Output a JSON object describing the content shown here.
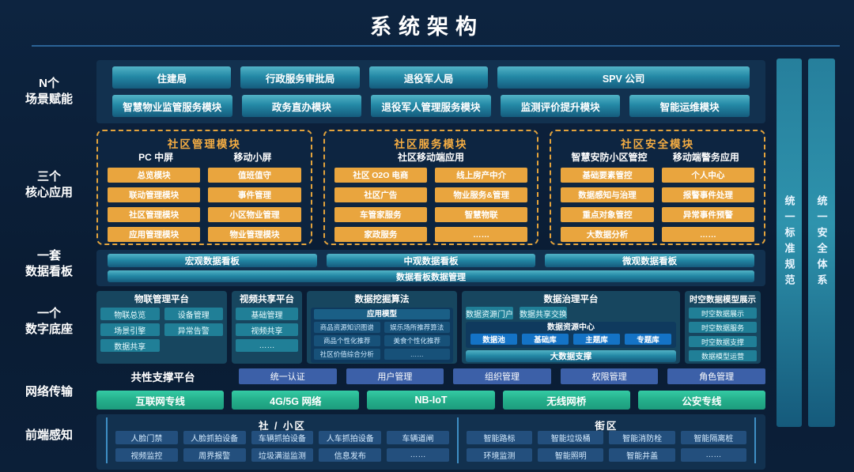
{
  "title": "系统架构",
  "sidebar": [
    [
      "N个",
      "场景赋能"
    ],
    [
      "三个",
      "核心应用"
    ],
    [
      "一套",
      "数据看板"
    ],
    [
      "一个",
      "数字底座"
    ],
    [
      "网络传输"
    ],
    [
      "前端感知"
    ]
  ],
  "right_bars": [
    "统一标准规范",
    "统一安全体系"
  ],
  "scenario": {
    "row1": [
      "住建局",
      "行政服务审批局",
      "退役军人局",
      "SPV  公司"
    ],
    "row2": [
      "智慧物业监管服务模块",
      "政务直办模块",
      "退役军人管理服务模块",
      "监测评价提升模块",
      "智能运维模块"
    ]
  },
  "core_apps": [
    {
      "title": "社区管理模块",
      "columns": [
        "PC 中屏",
        "移动小屏"
      ],
      "items": [
        "总览模块",
        "值班值守",
        "联动管理模块",
        "事件管理",
        "社区管理模块",
        "小区物业管理",
        "应用管理模块",
        "物业管理模块"
      ]
    },
    {
      "title": "社区服务模块",
      "columns": [
        "社区移动端应用"
      ],
      "items": [
        "社区  O2O  电商",
        "线上房产中介",
        "社区广告",
        "物业服务&管理",
        "车管家服务",
        "智慧物联",
        "家政服务",
        "……"
      ]
    },
    {
      "title": "社区安全模块",
      "columns": [
        "智慧安防小区管控",
        "移动端警务应用"
      ],
      "items": [
        "基础要素管控",
        "个人中心",
        "数据感知与治理",
        "报警事件处理",
        "重点对象管控",
        "异常事件预警",
        "大数据分析",
        "……"
      ]
    }
  ],
  "dashboard": {
    "boards": [
      "宏观数据看板",
      "中观数据看板",
      "微观数据看板"
    ],
    "manage": "数据看板数据管理"
  },
  "digital_base": {
    "iot": {
      "title": "物联管理平台",
      "items": [
        "物联总览",
        "设备管理",
        "场景引擎",
        "异常告警",
        "数据共享"
      ]
    },
    "video": {
      "title": "视频共享平台",
      "items": [
        "基础管理",
        "视频共享",
        "……"
      ]
    },
    "mining": {
      "title": "数据挖掘算法",
      "model_header": "应用模型",
      "items": [
        "商品资源知识图谱",
        "娱乐场所推荐算法",
        "商品个性化推荐",
        "美食个性化推荐",
        "社区价值综合分析",
        "……"
      ]
    },
    "governance": {
      "title": "数据治理平台",
      "top": [
        "数据资源门户",
        "数据共享交换"
      ],
      "center_label": "数据资源中心",
      "stores": [
        "数据池",
        "基础库",
        "主题库",
        "专题库"
      ],
      "support": "大数据支撑"
    },
    "spatiotemporal": {
      "title": "时空数据模型展示",
      "items": [
        "时空数据展示",
        "时空数据服务",
        "时空数据支撑",
        "数据模型运营"
      ]
    }
  },
  "common_platform": {
    "label": "共性支撑平台",
    "items": [
      "统一认证",
      "用户管理",
      "组织管理",
      "权限管理",
      "角色管理"
    ]
  },
  "network": [
    "互联网专线",
    "4G/5G  网络",
    "NB-IoT",
    "无线网桥",
    "公安专线"
  ],
  "perception": {
    "community": {
      "title": "社 / 小区",
      "items": [
        "人脸门禁",
        "人脸抓拍设备",
        "车辆抓拍设备",
        "人车抓拍设备",
        "车辆道闸",
        "视频监控",
        "周界报警",
        "垃圾满溢监测",
        "信息发布",
        "……"
      ]
    },
    "street": {
      "title": "街区",
      "items": [
        "智能路标",
        "智能垃圾桶",
        "智能消防栓",
        "智能隔离桩",
        "环境监测",
        "智能照明",
        "智能井盖",
        "……"
      ]
    }
  },
  "colors": {
    "background": "#0a1d35",
    "panel": "#12314f",
    "teal_box": "#2489a6",
    "accent_orange": "#e9a53e",
    "indigo_box": "#3c60a8",
    "green_box": "#24af8b",
    "bright_blue_box": "#1473c6"
  }
}
